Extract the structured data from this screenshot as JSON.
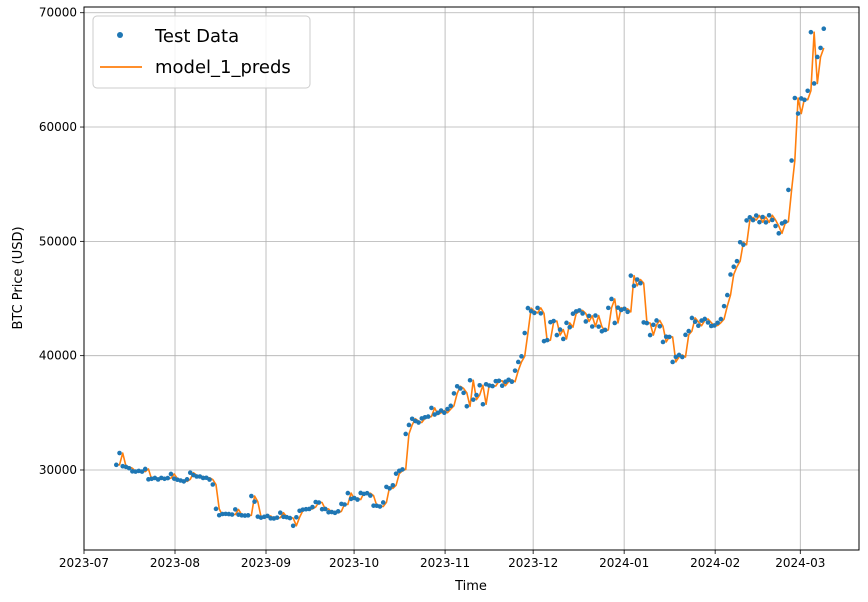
{
  "chart_data": {
    "type": "line",
    "title": "",
    "xlabel": "Time",
    "ylabel": "BTC Price (USD)",
    "x_start": "2023-07-12",
    "x_end": "2024-03-09",
    "xlim": [
      "2023-07-01",
      "2024-03-21"
    ],
    "ylim": [
      23000,
      70500
    ],
    "x_ticks": [
      {
        "date": "2023-07-01",
        "label": "2023-07"
      },
      {
        "date": "2023-08-01",
        "label": "2023-08"
      },
      {
        "date": "2023-09-01",
        "label": "2023-09"
      },
      {
        "date": "2023-10-01",
        "label": "2023-10"
      },
      {
        "date": "2023-11-01",
        "label": "2023-11"
      },
      {
        "date": "2023-12-01",
        "label": "2023-12"
      },
      {
        "date": "2024-01-01",
        "label": "2024-01"
      },
      {
        "date": "2024-02-01",
        "label": "2024-02"
      },
      {
        "date": "2024-03-01",
        "label": "2024-03"
      }
    ],
    "y_ticks": [
      30000,
      40000,
      50000,
      60000,
      70000
    ],
    "grid": true,
    "legend": "top-left",
    "series": [
      {
        "name": "Test Data",
        "style": "markers",
        "color": "#1f77b4",
        "values": [
          30450,
          31480,
          30330,
          30270,
          30150,
          29880,
          29860,
          29920,
          29860,
          30090,
          29180,
          29230,
          29300,
          29170,
          29310,
          29230,
          29290,
          29650,
          29240,
          29150,
          29080,
          29000,
          29180,
          29760,
          29550,
          29430,
          29430,
          29300,
          29320,
          29160,
          28730,
          26600,
          26040,
          26150,
          26160,
          26140,
          26100,
          26550,
          26090,
          26030,
          26010,
          26030,
          27720,
          27230,
          25920,
          25830,
          25900,
          25980,
          25770,
          25760,
          25830,
          26260,
          25900,
          25870,
          25790,
          25120,
          25860,
          26430,
          26530,
          26570,
          26590,
          26760,
          27200,
          27150,
          26570,
          26590,
          26300,
          26320,
          26250,
          26380,
          27030,
          26980,
          27980,
          27470,
          27550,
          27410,
          27990,
          27910,
          27970,
          27760,
          26880,
          26870,
          26800,
          27160,
          28520,
          28390,
          28660,
          29680,
          29930,
          30050,
          33150,
          33940,
          34480,
          34280,
          34150,
          34510,
          34610,
          34670,
          35430,
          34850,
          35000,
          35200,
          35010,
          35330,
          35610,
          36700,
          37320,
          37130,
          36750,
          35570,
          37850,
          36150,
          36560,
          37410,
          35750,
          37500,
          37390,
          37340,
          37770,
          37800,
          37370,
          37720,
          37890,
          37720,
          38690,
          39450,
          39940,
          41980,
          44160,
          43900,
          43740,
          44180,
          43700,
          41270,
          41360,
          42930,
          43030,
          41800,
          42280,
          41460,
          42870,
          42490,
          43670,
          43870,
          43960,
          43690,
          42990,
          43480,
          42550,
          43510,
          42540,
          42130,
          42250,
          44180,
          44960,
          42860,
          44200,
          44000,
          44100,
          43830,
          47000,
          46110,
          46660,
          46340,
          42910,
          42850,
          41800,
          42700,
          43080,
          42570,
          41200,
          41660,
          41640,
          39450,
          39890,
          40060,
          39880,
          41820,
          42150,
          43300,
          42970,
          42620,
          43070,
          43210,
          42900,
          42600,
          42640,
          42880,
          43200,
          44330,
          45300,
          47100,
          47780,
          48270,
          49920,
          49700,
          51830,
          52100,
          51860,
          52260,
          51680,
          52130,
          51660,
          52280,
          51870,
          51340,
          50700,
          51570,
          51720,
          54500,
          57070,
          62540,
          61180,
          62500,
          62380,
          63170,
          68300,
          63810,
          66130,
          66920,
          68600
        ]
      },
      {
        "name": "model_1_preds",
        "style": "line",
        "color": "#ff7f0e"
      }
    ]
  },
  "legend": {
    "items": [
      {
        "label": "Test Data"
      },
      {
        "label": "model_1_preds"
      }
    ]
  }
}
